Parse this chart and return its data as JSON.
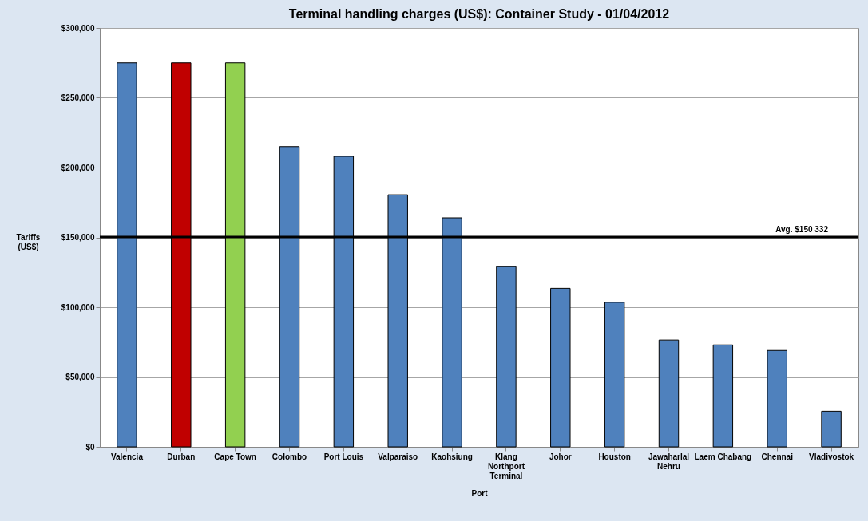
{
  "chart_data": {
    "type": "bar",
    "title": "Terminal handling charges (US$): Container Study - 01/04/2012",
    "xlabel": "Port",
    "ylabel": "Tariffs (US$)",
    "categories": [
      "Valencia",
      "Durban",
      "Cape Town",
      "Colombo",
      "Port Louis",
      "Valparaiso",
      "Kaohsiung",
      "Klang Northport Terminal",
      "Johor",
      "Houston",
      "Jawaharlal Nehru",
      "Laem Chabang",
      "Chennai",
      "Vladivostok"
    ],
    "values": [
      275000,
      275000,
      275000,
      215000,
      208000,
      180500,
      164000,
      129000,
      113500,
      103500,
      76500,
      73000,
      69000,
      25500
    ],
    "colors": [
      "#4f81bd",
      "#c00000",
      "#92d050",
      "#4f81bd",
      "#4f81bd",
      "#4f81bd",
      "#4f81bd",
      "#4f81bd",
      "#4f81bd",
      "#4f81bd",
      "#4f81bd",
      "#4f81bd",
      "#4f81bd",
      "#4f81bd"
    ],
    "ylim": [
      0,
      300000
    ],
    "yticks": [
      {
        "value": 0,
        "label": "$0"
      },
      {
        "value": 50000,
        "label": "$50,000"
      },
      {
        "value": 100000,
        "label": "$100,000"
      },
      {
        "value": 150000,
        "label": "$150,000"
      },
      {
        "value": 200000,
        "label": "$200,000"
      },
      {
        "value": 250000,
        "label": "$250,000"
      },
      {
        "value": 300000,
        "label": "$300,000"
      }
    ],
    "grid": "y",
    "ref_lines": [
      {
        "axis": "y",
        "value": 150332,
        "label": "Avg. $150 332",
        "color": "#000000"
      }
    ]
  }
}
